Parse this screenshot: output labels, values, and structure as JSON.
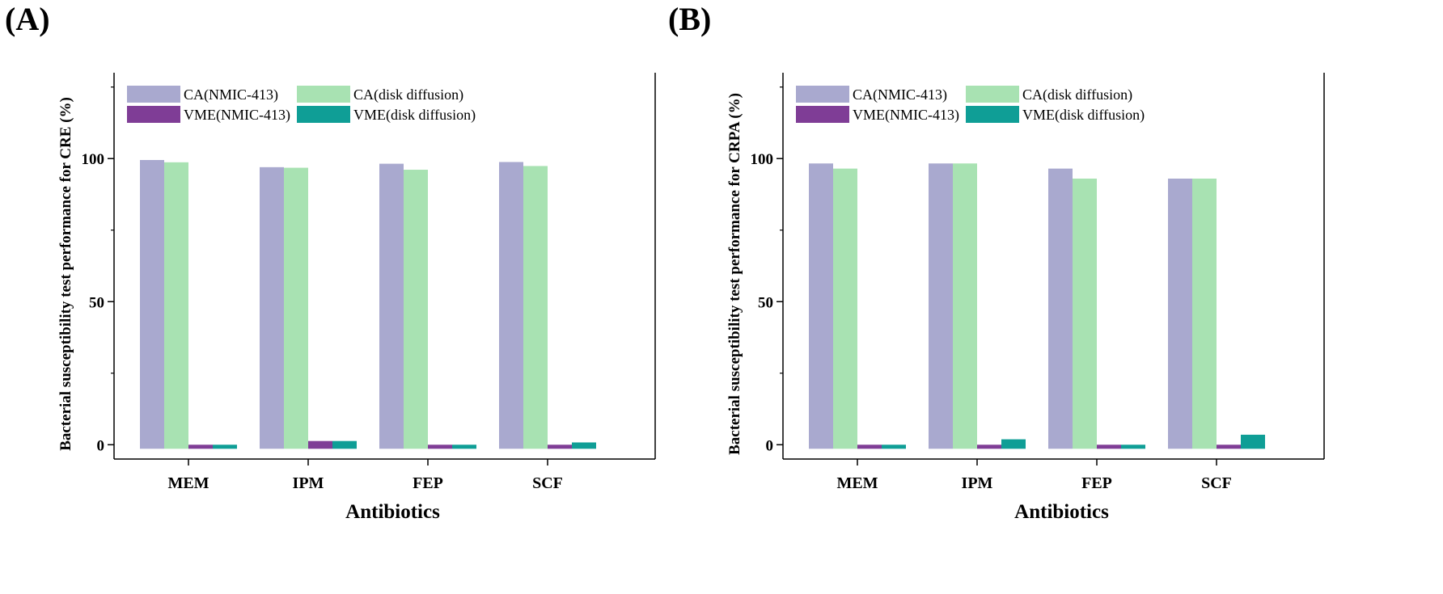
{
  "panels": [
    {
      "label": "(A)",
      "chart_data": {
        "type": "bar",
        "categories": [
          "MEM",
          "IPM",
          "FEP",
          "SCF"
        ],
        "xlabel": "Antibiotics",
        "ylabel": "Bacterial susceptibility test performance for CRE (%)",
        "ylim": [
          -5,
          130
        ],
        "yticks": [
          0,
          50,
          100
        ],
        "ytick_labels": [
          "0",
          "50",
          "100"
        ],
        "legend_position": "top-left",
        "series": [
          {
            "name": "CA(NMIC-413)",
            "color": "#a9a9cf",
            "values": [
              99.5,
              97.0,
              98.2,
              98.8
            ]
          },
          {
            "name": "CA(disk diffusion)",
            "color": "#a8e2b2",
            "values": [
              98.7,
              96.8,
              96.1,
              97.4
            ]
          },
          {
            "name": "VME(NMIC-413)",
            "color": "#7f3d96",
            "values": [
              0.0,
              1.3,
              0.0,
              0.0
            ]
          },
          {
            "name": "VME(disk diffusion)",
            "color": "#0f9e96",
            "values": [
              0.0,
              1.3,
              0.0,
              0.8
            ]
          }
        ]
      }
    },
    {
      "label": "(B)",
      "chart_data": {
        "type": "bar",
        "categories": [
          "MEM",
          "IPM",
          "FEP",
          "SCF"
        ],
        "xlabel": "Antibiotics",
        "ylabel": "Bacterial susceptibility test performance for CRPA (%)",
        "ylim": [
          -5,
          130
        ],
        "yticks": [
          0,
          50,
          100
        ],
        "ytick_labels": [
          "0",
          "50",
          "100"
        ],
        "legend_position": "top-left",
        "series": [
          {
            "name": "CA(NMIC-413)",
            "color": "#a9a9cf",
            "values": [
              98.3,
              98.3,
              96.5,
              93.0
            ]
          },
          {
            "name": "CA(disk diffusion)",
            "color": "#a8e2b2",
            "values": [
              96.5,
              98.3,
              93.0,
              93.0
            ]
          },
          {
            "name": "VME(NMIC-413)",
            "color": "#7f3d96",
            "values": [
              0.0,
              0.0,
              0.0,
              0.0
            ]
          },
          {
            "name": "VME(disk diffusion)",
            "color": "#0f9e96",
            "values": [
              0.0,
              1.9,
              0.0,
              3.5
            ]
          }
        ]
      }
    }
  ]
}
